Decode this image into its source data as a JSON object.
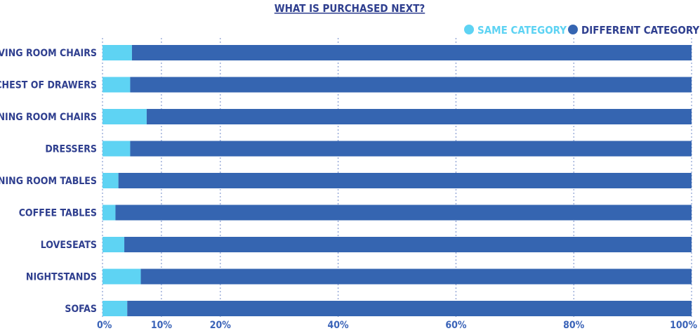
{
  "chart_data": {
    "type": "bar",
    "orientation": "horizontal",
    "stacked": true,
    "title": "WHAT IS PURCHASED NEXT?",
    "categories": [
      "LIVING ROOM CHAIRS",
      "CHEST OF DRAWERS",
      "DINING ROOM CHAIRS",
      "DRESSERS",
      "DINING ROOM TABLES",
      "COFFEE TABLES",
      "LOVESEATS",
      "NIGHTSTANDS",
      "SOFAS"
    ],
    "series": [
      {
        "name": "SAME CATEGORY",
        "color": "#5ed3f3",
        "values": [
          5,
          4.7,
          7.5,
          4.7,
          2.7,
          2.2,
          3.7,
          6.5,
          4.2
        ]
      },
      {
        "name": "DIFFERENT CATEGORY",
        "color": "#3565b1",
        "values": [
          95,
          95.3,
          92.5,
          95.3,
          97.3,
          97.8,
          96.3,
          93.5,
          95.8
        ]
      }
    ],
    "x_ticks": [
      "0%",
      "10%",
      "20%",
      "40%",
      "60%",
      "80%",
      "100%"
    ],
    "x_tick_values": [
      0,
      10,
      20,
      40,
      60,
      80,
      100
    ],
    "xlim": [
      0,
      100
    ],
    "grid": "vertical dotted",
    "legend_position": "top-right"
  }
}
